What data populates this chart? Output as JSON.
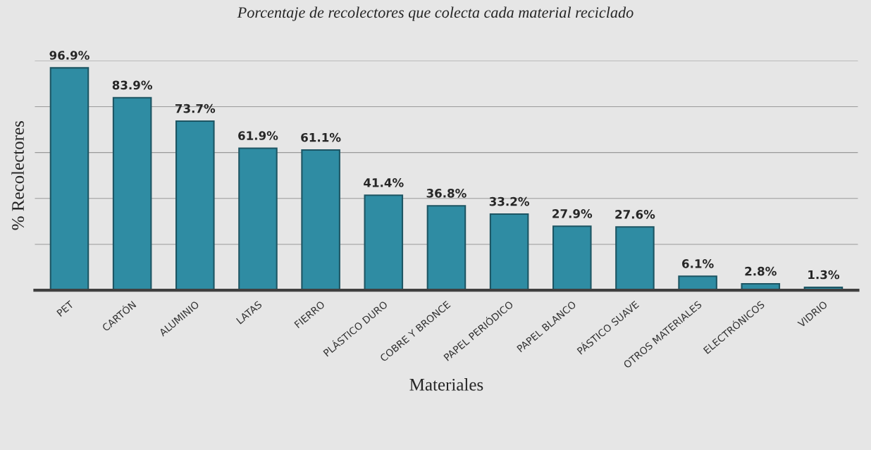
{
  "chart_data": {
    "type": "bar",
    "title": "Porcentaje de recolectores que colecta cada material reciclado",
    "xlabel": "Materiales",
    "ylabel": "% Recolectores",
    "categories": [
      "PET",
      "CARTÓN",
      "ALUMINIO",
      "LATAS",
      "FIERRO",
      "PLÁSTICO DURO",
      "COBRE Y BRONCE",
      "PAPEL PERIÓDICO",
      "PAPEL BLANCO",
      "PÁSTICO SUAVE",
      "OTROS MATERIALES",
      "ELECTRÓNICOS",
      "VIDRIO"
    ],
    "values": [
      96.9,
      83.9,
      73.7,
      61.9,
      61.1,
      41.4,
      36.8,
      33.2,
      27.9,
      27.6,
      6.1,
      2.8,
      1.3
    ],
    "value_labels": [
      "96.9%",
      "83.9%",
      "73.7%",
      "61.9%",
      "61.1%",
      "41.4%",
      "36.8%",
      "33.2%",
      "27.9%",
      "27.6%",
      "6.1%",
      "2.8%",
      "1.3%"
    ],
    "color": "#2f8ca3",
    "ylim": [
      0,
      100
    ],
    "yticks": [
      {
        "value": 0,
        "label": null
      },
      {
        "value": 20,
        "label": null
      },
      {
        "value": 40,
        "label": null
      },
      {
        "value": 60,
        "label": null
      },
      {
        "value": 80,
        "label": null
      },
      {
        "value": 100,
        "label": null
      }
    ],
    "grid": "y",
    "legend": false
  }
}
